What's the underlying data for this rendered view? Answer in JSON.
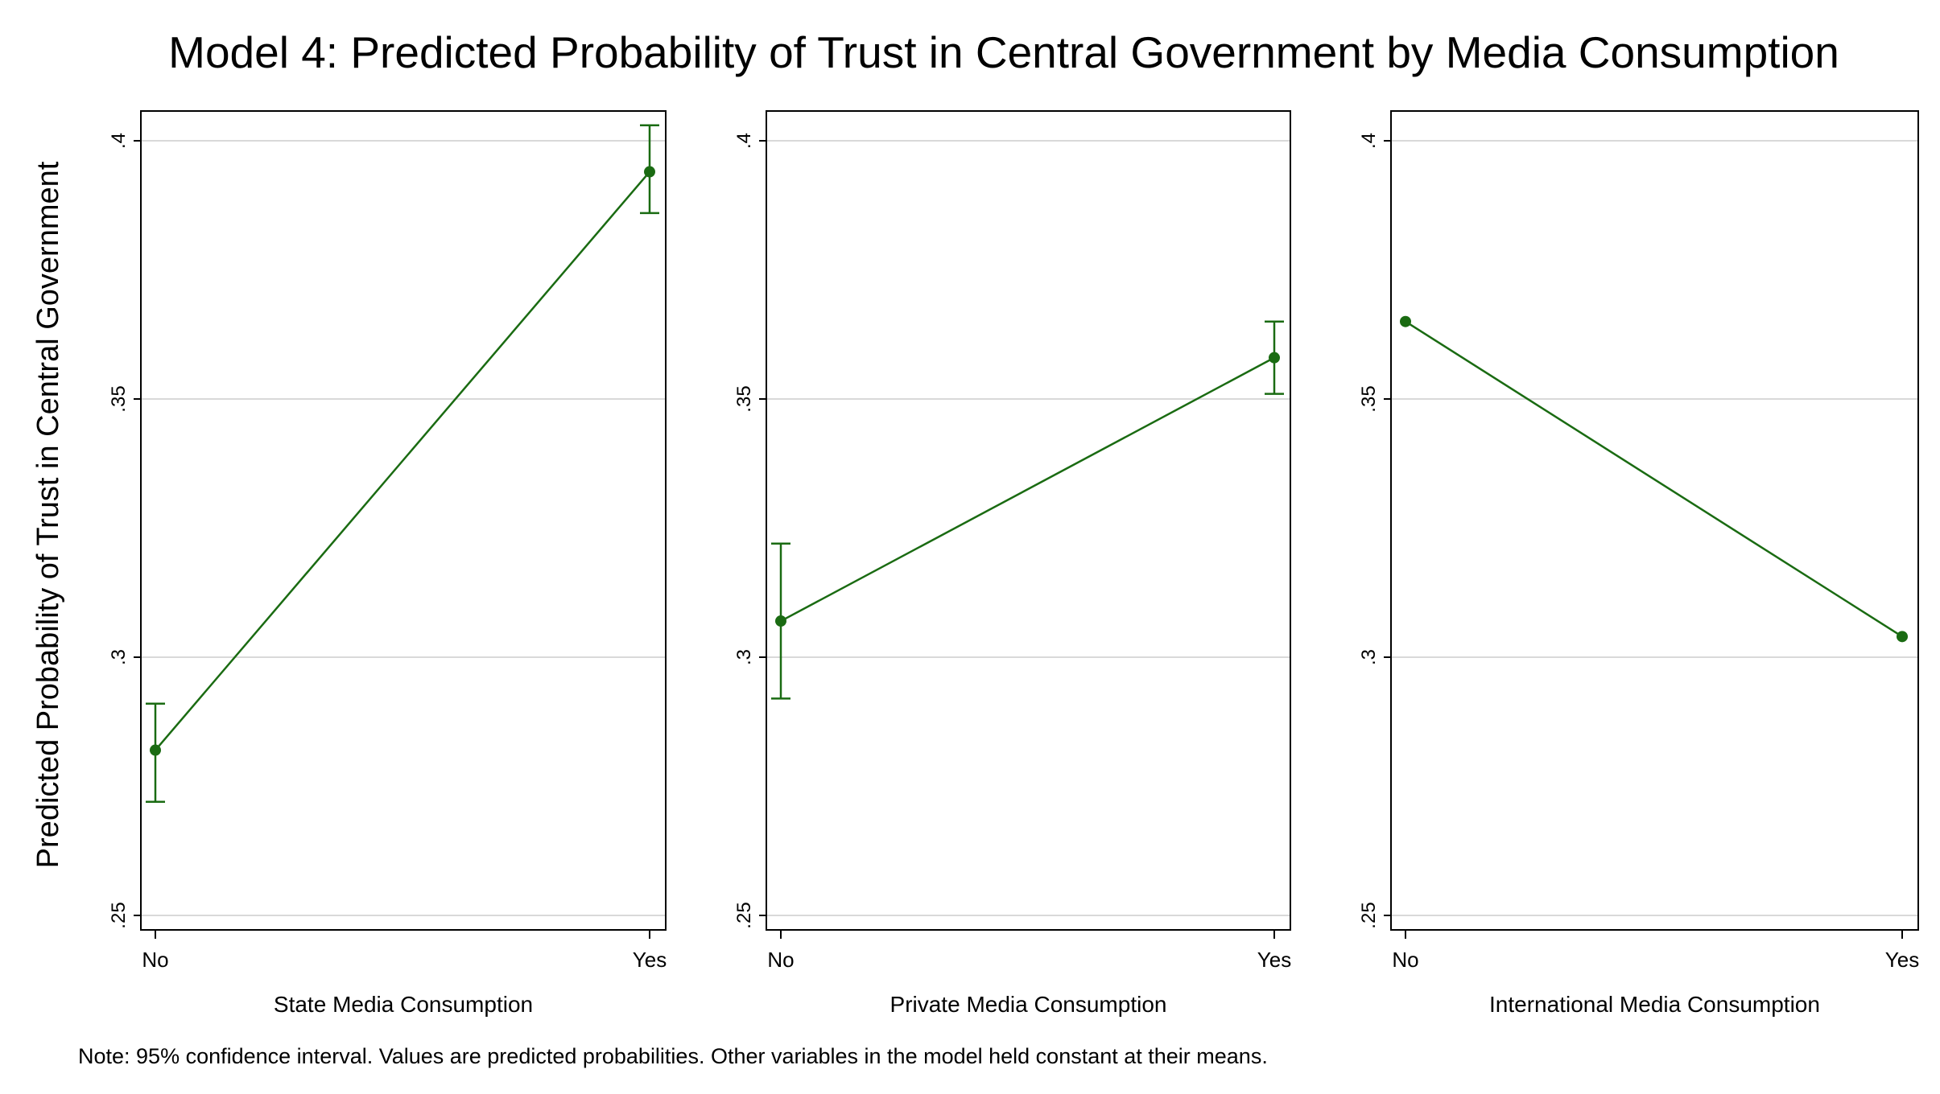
{
  "figure": {
    "title": "Model 4: Predicted Probability of Trust in Central Government by Media Consumption",
    "ylabel": "Predicted Probability of Trust in Central Government",
    "note": "Note: 95% confidence interval. Values are predicted probabilities. Other variables in the model held constant at their means."
  },
  "chart_data": [
    {
      "type": "line",
      "title": "",
      "xlabel": "State Media Consumption",
      "ylabel": "Predicted Probability of Trust in Central Government",
      "categories": [
        "No",
        "Yes"
      ],
      "values": [
        0.282,
        0.394
      ],
      "ci_lower": [
        0.272,
        0.386
      ],
      "ci_upper": [
        0.291,
        0.403
      ],
      "ylim": [
        0.25,
        0.4
      ],
      "yticks": [
        0.25,
        0.3,
        0.35,
        0.4
      ],
      "ytick_labels": [
        ".25",
        ".3",
        ".35",
        ".4"
      ],
      "grid": true,
      "legend": "none",
      "color": "#1a6b12"
    },
    {
      "type": "line",
      "title": "",
      "xlabel": "Private Media Consumption",
      "ylabel": "",
      "categories": [
        "No",
        "Yes"
      ],
      "values": [
        0.307,
        0.358
      ],
      "ci_lower": [
        0.292,
        0.351
      ],
      "ci_upper": [
        0.322,
        0.365
      ],
      "ylim": [
        0.25,
        0.4
      ],
      "yticks": [
        0.25,
        0.3,
        0.35,
        0.4
      ],
      "ytick_labels": [
        ".25",
        ".3",
        ".35",
        ".4"
      ],
      "grid": true,
      "legend": "none",
      "color": "#1a6b12"
    },
    {
      "type": "line",
      "title": "",
      "xlabel": "International Media Consumption",
      "ylabel": "",
      "categories": [
        "No",
        "Yes"
      ],
      "values": [
        0.365,
        0.304
      ],
      "ci_lower": [
        0.365,
        0.304
      ],
      "ci_upper": [
        0.365,
        0.304
      ],
      "ylim": [
        0.25,
        0.4
      ],
      "yticks": [
        0.25,
        0.3,
        0.35,
        0.4
      ],
      "ytick_labels": [
        ".25",
        ".3",
        ".35",
        ".4"
      ],
      "grid": true,
      "legend": "none",
      "color": "#1a6b12"
    }
  ]
}
